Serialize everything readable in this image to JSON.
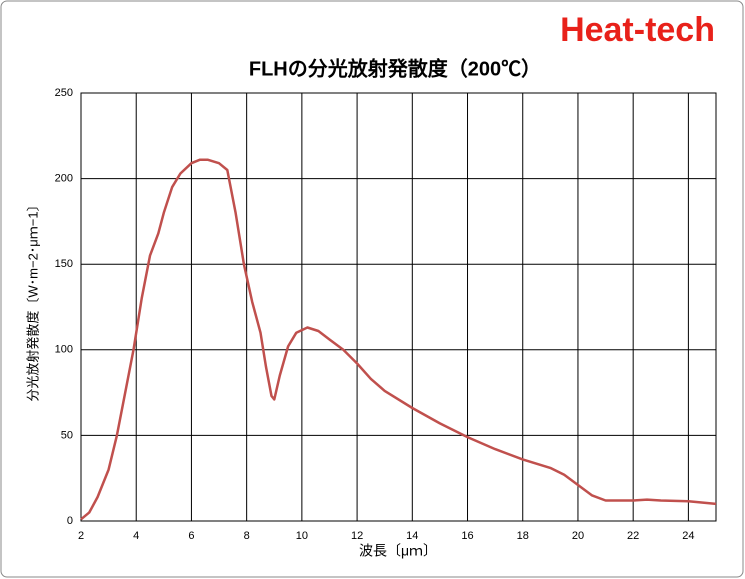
{
  "chart_data": {
    "type": "line",
    "brand": "Heat-tech",
    "title": "FLHの分光放射発散度（200℃）",
    "xlabel": "波長〔μｍ〕",
    "ylabel": "分光放射発散度〔W･m−2･μｍ−1〕",
    "x": [
      2.0,
      2.3,
      2.6,
      3.0,
      3.3,
      3.6,
      3.9,
      4.2,
      4.5,
      4.8,
      5.0,
      5.3,
      5.6,
      6.0,
      6.3,
      6.6,
      7.0,
      7.3,
      7.6,
      7.9,
      8.2,
      8.5,
      8.7,
      8.9,
      9.0,
      9.2,
      9.5,
      9.8,
      10.2,
      10.6,
      11.0,
      11.5,
      12.0,
      12.5,
      13.0,
      14.0,
      15.0,
      16.0,
      17.0,
      18.0,
      19.0,
      19.5,
      20.0,
      20.5,
      21.0,
      22.0,
      22.5,
      23.0,
      24.0,
      25.0
    ],
    "values": [
      1,
      5,
      14,
      30,
      50,
      75,
      100,
      130,
      155,
      168,
      180,
      195,
      203,
      209,
      211,
      211,
      209,
      205,
      180,
      150,
      128,
      110,
      90,
      73,
      71,
      85,
      102,
      110,
      113,
      111,
      106,
      100,
      92,
      83,
      76,
      66,
      57,
      49,
      42,
      36,
      31,
      27,
      21,
      15,
      12,
      12,
      12.5,
      12,
      11.5,
      10
    ],
    "color": "#c0504d",
    "xlim": [
      2,
      25
    ],
    "xticks": [
      2,
      4,
      6,
      8,
      10,
      12,
      14,
      16,
      18,
      20,
      22,
      24
    ],
    "ylim": [
      0,
      250
    ],
    "yticks": [
      0,
      50,
      100,
      150,
      200,
      250
    ],
    "grid": true
  }
}
